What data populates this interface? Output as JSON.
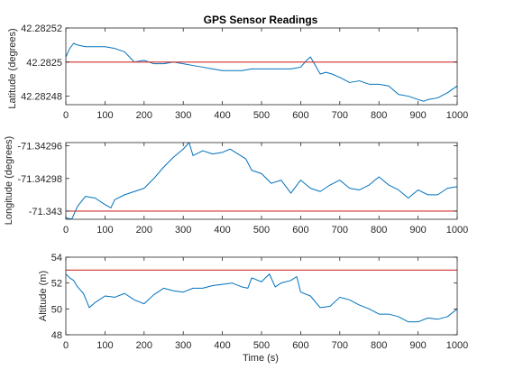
{
  "chart_data": [
    {
      "type": "line",
      "title": "GPS Sensor Readings",
      "xlabel": "",
      "ylabel": "Latitude (degrees)",
      "xlim": [
        0,
        1000
      ],
      "ylim": [
        42.282475,
        42.28252
      ],
      "xticks": [
        0,
        100,
        200,
        300,
        400,
        500,
        600,
        700,
        800,
        900,
        1000
      ],
      "xtick_labels": [
        "0",
        "100",
        "200",
        "300",
        "400",
        "500",
        "600",
        "700",
        "800",
        "900",
        "1000"
      ],
      "yticks": [
        42.28248,
        42.2825,
        42.28252
      ],
      "ytick_labels": [
        "42.28248",
        "42.2825",
        "42.28252"
      ],
      "grid": false,
      "series": [
        {
          "color": "#0072BD",
          "x": [
            0,
            10,
            20,
            30,
            50,
            75,
            100,
            125,
            150,
            175,
            200,
            225,
            250,
            275,
            300,
            325,
            350,
            375,
            400,
            425,
            450,
            475,
            500,
            525,
            550,
            575,
            600,
            615,
            625,
            635,
            650,
            665,
            680,
            700,
            725,
            750,
            775,
            800,
            825,
            850,
            875,
            900,
            915,
            925,
            950,
            975,
            1000
          ],
          "y": [
            42.282503,
            42.282508,
            42.282511,
            42.28251,
            42.282509,
            42.282509,
            42.282509,
            42.282508,
            42.282506,
            42.2825,
            42.282501,
            42.282499,
            42.282499,
            42.2825,
            42.282499,
            42.282498,
            42.282497,
            42.282496,
            42.282495,
            42.282495,
            42.282495,
            42.282496,
            42.282496,
            42.282496,
            42.282496,
            42.282496,
            42.282497,
            42.282501,
            42.282503,
            42.282499,
            42.282493,
            42.282494,
            42.282493,
            42.282491,
            42.282488,
            42.282489,
            42.282487,
            42.282487,
            42.282486,
            42.282481,
            42.28248,
            42.282478,
            42.282477,
            42.282478,
            42.282479,
            42.282482,
            42.282486
          ]
        },
        {
          "color": "#D0312D",
          "x": [
            0,
            1000
          ],
          "y": [
            42.2825,
            42.2825
          ]
        }
      ]
    },
    {
      "type": "line",
      "title": "",
      "xlabel": "",
      "ylabel": "Longitude (degrees)",
      "xlim": [
        0,
        1000
      ],
      "ylim": [
        -71.343005,
        -71.342958
      ],
      "xticks": [
        0,
        100,
        200,
        300,
        400,
        500,
        600,
        700,
        800,
        900,
        1000
      ],
      "xtick_labels": [
        "0",
        "100",
        "200",
        "300",
        "400",
        "500",
        "600",
        "700",
        "800",
        "900",
        "1000"
      ],
      "yticks": [
        -71.343,
        -71.34298,
        -71.34296
      ],
      "ytick_labels": [
        "-71.343",
        "-71.34298",
        "-71.34296"
      ],
      "grid": false,
      "series": [
        {
          "color": "#0072BD",
          "x": [
            0,
            15,
            30,
            50,
            75,
            100,
            115,
            125,
            150,
            175,
            200,
            225,
            250,
            275,
            300,
            315,
            325,
            350,
            375,
            400,
            420,
            440,
            460,
            475,
            500,
            525,
            550,
            575,
            600,
            625,
            650,
            675,
            700,
            725,
            750,
            775,
            800,
            825,
            850,
            875,
            900,
            925,
            950,
            975,
            1000
          ],
          "y": [
            -71.343004,
            -71.343005,
            -71.342997,
            -71.342991,
            -71.342992,
            -71.342996,
            -71.342998,
            -71.342993,
            -71.34299,
            -71.342988,
            -71.342986,
            -71.34298,
            -71.342973,
            -71.342967,
            -71.342962,
            -71.342958,
            -71.342966,
            -71.342963,
            -71.342965,
            -71.342964,
            -71.342962,
            -71.342965,
            -71.342968,
            -71.342975,
            -71.342977,
            -71.342983,
            -71.342981,
            -71.342989,
            -71.342981,
            -71.342986,
            -71.342988,
            -71.342984,
            -71.342981,
            -71.342986,
            -71.342987,
            -71.342984,
            -71.342979,
            -71.342984,
            -71.342987,
            -71.342992,
            -71.342987,
            -71.34299,
            -71.34299,
            -71.342986,
            -71.342985
          ]
        },
        {
          "color": "#D0312D",
          "x": [
            0,
            1000
          ],
          "y": [
            -71.343,
            -71.343
          ]
        }
      ]
    },
    {
      "type": "line",
      "title": "",
      "xlabel": "Time (s)",
      "ylabel": "Altitude (m)",
      "xlim": [
        0,
        1000
      ],
      "ylim": [
        48,
        54
      ],
      "xticks": [
        0,
        100,
        200,
        300,
        400,
        500,
        600,
        700,
        800,
        900,
        1000
      ],
      "xtick_labels": [
        "0",
        "100",
        "200",
        "300",
        "400",
        "500",
        "600",
        "700",
        "800",
        "900",
        "1000"
      ],
      "yticks": [
        48,
        50,
        52,
        54
      ],
      "ytick_labels": [
        "48",
        "50",
        "52",
        "54"
      ],
      "grid": false,
      "series": [
        {
          "color": "#0072BD",
          "x": [
            0,
            10,
            20,
            30,
            45,
            60,
            75,
            100,
            125,
            150,
            175,
            200,
            225,
            250,
            275,
            300,
            325,
            350,
            375,
            400,
            425,
            450,
            465,
            475,
            500,
            520,
            535,
            550,
            575,
            590,
            600,
            625,
            650,
            675,
            700,
            725,
            750,
            775,
            800,
            825,
            850,
            875,
            900,
            925,
            950,
            975,
            1000
          ],
          "y": [
            52.7,
            52.4,
            52.2,
            51.7,
            51.2,
            50.1,
            50.5,
            51.0,
            50.9,
            51.2,
            50.7,
            50.4,
            51.1,
            51.6,
            51.4,
            51.3,
            51.6,
            51.6,
            51.8,
            51.9,
            52.0,
            51.7,
            51.6,
            52.4,
            52.1,
            52.7,
            51.7,
            52.0,
            52.2,
            52.5,
            51.3,
            51.0,
            50.1,
            50.2,
            50.9,
            50.7,
            50.3,
            50.0,
            49.6,
            49.6,
            49.4,
            49.0,
            49.0,
            49.3,
            49.2,
            49.4,
            50.0
          ]
        },
        {
          "color": "#D0312D",
          "x": [
            0,
            1000
          ],
          "y": [
            53,
            53
          ]
        }
      ]
    }
  ]
}
